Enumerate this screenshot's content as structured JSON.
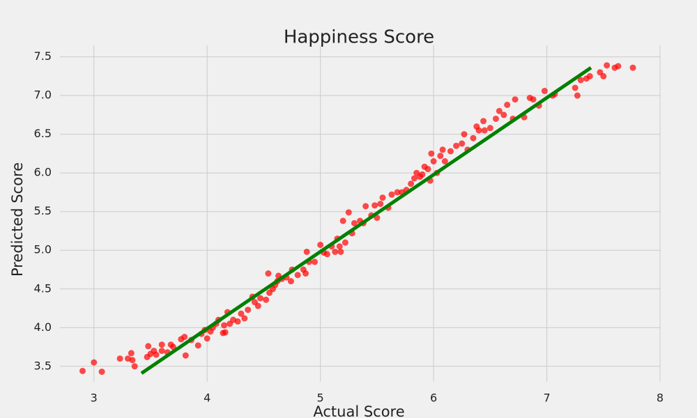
{
  "chart_data": {
    "type": "scatter",
    "title": "Happiness Score",
    "x_label": "Actual Score",
    "y_label": "Predicted Score",
    "xlim": [
      2.7,
      8.0
    ],
    "ylim": [
      3.3,
      7.65
    ],
    "xticks": [
      3,
      4,
      5,
      6,
      7,
      8
    ],
    "yticks": [
      3.5,
      {
        "value": 4,
        "label": "4.0"
      },
      4.5,
      {
        "value": 5,
        "label": "5.0"
      },
      5.5,
      {
        "value": 6,
        "label": "6.0"
      },
      6.5,
      {
        "value": 7,
        "label": "7.0"
      },
      7.5
    ],
    "grid": true,
    "series": [
      {
        "color": "#ff0000",
        "x": [
          2.9,
          3.0,
          3.07,
          3.23,
          3.3,
          3.33,
          3.34,
          3.36,
          3.47,
          3.48,
          3.5,
          3.53,
          3.55,
          3.6,
          3.6,
          3.65,
          3.68,
          3.7,
          3.77,
          3.8,
          3.81,
          3.86,
          3.92,
          3.95,
          3.98,
          4.0,
          4.03,
          4.05,
          4.08,
          4.1,
          4.14,
          4.16,
          4.15,
          4.18,
          4.2,
          4.23,
          4.27,
          4.3,
          4.33,
          4.36,
          4.4,
          4.42,
          4.45,
          4.47,
          4.52,
          4.54,
          4.55,
          4.58,
          4.6,
          4.62,
          4.63,
          4.66,
          4.7,
          4.74,
          4.75,
          4.8,
          4.85,
          4.87,
          4.88,
          4.9,
          4.95,
          5.0,
          5.03,
          5.06,
          5.1,
          5.13,
          5.15,
          5.17,
          5.18,
          5.2,
          5.22,
          5.25,
          5.28,
          5.3,
          5.35,
          5.38,
          5.4,
          5.45,
          5.48,
          5.5,
          5.53,
          5.55,
          5.6,
          5.63,
          5.68,
          5.72,
          5.76,
          5.8,
          5.83,
          5.85,
          5.88,
          5.9,
          5.92,
          5.95,
          5.97,
          5.98,
          6.0,
          6.03,
          6.06,
          6.08,
          6.1,
          6.15,
          6.2,
          6.25,
          6.27,
          6.3,
          6.35,
          6.38,
          6.4,
          6.44,
          6.45,
          6.5,
          6.55,
          6.58,
          6.62,
          6.65,
          6.7,
          6.72,
          6.8,
          6.85,
          6.88,
          6.93,
          6.98,
          7.05,
          7.07,
          7.25,
          7.27,
          7.3,
          7.35,
          7.38,
          7.47,
          7.5,
          7.53,
          7.6,
          7.63,
          7.76
        ],
        "values": [
          3.44,
          3.55,
          3.43,
          3.6,
          3.6,
          3.67,
          3.58,
          3.5,
          3.62,
          3.76,
          3.66,
          3.7,
          3.65,
          3.7,
          3.78,
          3.68,
          3.78,
          3.75,
          3.85,
          3.88,
          3.64,
          3.84,
          3.77,
          3.92,
          3.97,
          3.86,
          3.95,
          4.0,
          4.05,
          4.1,
          3.93,
          3.94,
          4.03,
          4.2,
          4.05,
          4.1,
          4.08,
          4.18,
          4.12,
          4.23,
          4.4,
          4.33,
          4.28,
          4.38,
          4.36,
          4.7,
          4.45,
          4.5,
          4.55,
          4.6,
          4.67,
          4.63,
          4.65,
          4.6,
          4.75,
          4.68,
          4.75,
          4.7,
          4.98,
          4.85,
          4.85,
          5.07,
          4.97,
          4.95,
          5.05,
          4.98,
          5.15,
          5.05,
          4.98,
          5.38,
          5.1,
          5.49,
          5.22,
          5.35,
          5.38,
          5.35,
          5.57,
          5.45,
          5.58,
          5.42,
          5.6,
          5.68,
          5.55,
          5.72,
          5.75,
          5.75,
          5.78,
          5.86,
          5.93,
          6.0,
          5.95,
          5.98,
          6.08,
          6.05,
          5.9,
          6.25,
          6.15,
          6.0,
          6.22,
          6.3,
          6.15,
          6.28,
          6.35,
          6.38,
          6.5,
          6.3,
          6.45,
          6.6,
          6.55,
          6.67,
          6.55,
          6.58,
          6.7,
          6.8,
          6.75,
          6.88,
          6.7,
          6.95,
          6.72,
          6.97,
          6.95,
          6.87,
          7.06,
          7.0,
          7.02,
          7.1,
          7.0,
          7.2,
          7.22,
          7.25,
          7.3,
          7.25,
          7.39,
          7.36,
          7.38,
          7.36
        ]
      }
    ],
    "fit_line": {
      "color": "#008000",
      "x": [
        3.42,
        7.39
      ],
      "values": [
        3.41,
        7.36
      ]
    }
  }
}
